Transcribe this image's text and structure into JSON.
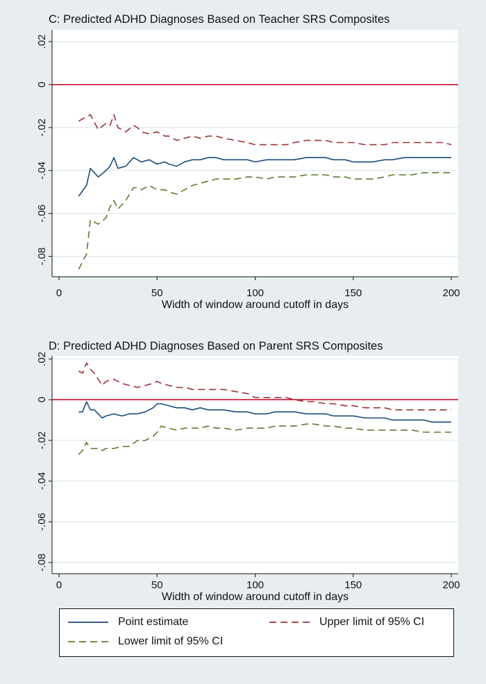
{
  "chart_data": [
    {
      "type": "line",
      "title": "C: Predicted ADHD Diagnoses Based on Teacher SRS Composites",
      "xlabel": "Width of window around cutoff in days",
      "ylabel": "",
      "xlim": [
        0,
        200
      ],
      "ylim": [
        -0.09,
        0.02
      ],
      "xticks": [
        0,
        50,
        100,
        150,
        200
      ],
      "yticks": [
        0.02,
        0,
        -0.02,
        -0.04,
        -0.06,
        -0.08
      ],
      "ytick_labels": [
        ".02",
        "0",
        "-.02",
        "-.04",
        "-.06",
        "-.08"
      ],
      "reference_line": 0,
      "grid": true,
      "x": [
        10,
        14,
        16,
        20,
        24,
        26,
        28,
        30,
        34,
        38,
        40,
        42,
        46,
        50,
        54,
        56,
        60,
        64,
        68,
        72,
        76,
        80,
        84,
        90,
        96,
        100,
        106,
        110,
        116,
        120,
        126,
        130,
        136,
        140,
        146,
        150,
        156,
        160,
        166,
        170,
        176,
        180,
        186,
        190,
        196,
        200
      ],
      "series": [
        {
          "name": "Point estimate",
          "values": [
            -0.052,
            -0.047,
            -0.039,
            -0.043,
            -0.04,
            -0.038,
            -0.034,
            -0.039,
            -0.038,
            -0.034,
            -0.035,
            -0.036,
            -0.035,
            -0.037,
            -0.036,
            -0.037,
            -0.038,
            -0.036,
            -0.035,
            -0.035,
            -0.034,
            -0.034,
            -0.035,
            -0.035,
            -0.035,
            -0.036,
            -0.035,
            -0.035,
            -0.035,
            -0.035,
            -0.034,
            -0.034,
            -0.034,
            -0.035,
            -0.035,
            -0.036,
            -0.036,
            -0.036,
            -0.035,
            -0.035,
            -0.034,
            -0.034,
            -0.034,
            -0.034,
            -0.034,
            -0.034
          ]
        },
        {
          "name": "Upper limit of 95% CI",
          "values": [
            -0.017,
            -0.015,
            -0.014,
            -0.021,
            -0.018,
            -0.019,
            -0.014,
            -0.02,
            -0.022,
            -0.019,
            -0.02,
            -0.022,
            -0.023,
            -0.022,
            -0.024,
            -0.024,
            -0.026,
            -0.025,
            -0.024,
            -0.025,
            -0.024,
            -0.024,
            -0.025,
            -0.026,
            -0.027,
            -0.028,
            -0.028,
            -0.028,
            -0.028,
            -0.027,
            -0.026,
            -0.026,
            -0.026,
            -0.027,
            -0.027,
            -0.027,
            -0.028,
            -0.028,
            -0.028,
            -0.027,
            -0.027,
            -0.027,
            -0.027,
            -0.027,
            -0.027,
            -0.028
          ]
        },
        {
          "name": "Lower limit of 95% CI",
          "values": [
            -0.086,
            -0.079,
            -0.063,
            -0.065,
            -0.062,
            -0.057,
            -0.054,
            -0.058,
            -0.054,
            -0.048,
            -0.048,
            -0.049,
            -0.047,
            -0.049,
            -0.049,
            -0.05,
            -0.051,
            -0.049,
            -0.047,
            -0.046,
            -0.045,
            -0.044,
            -0.044,
            -0.044,
            -0.043,
            -0.043,
            -0.044,
            -0.043,
            -0.043,
            -0.043,
            -0.042,
            -0.042,
            -0.042,
            -0.043,
            -0.043,
            -0.044,
            -0.044,
            -0.044,
            -0.043,
            -0.042,
            -0.042,
            -0.042,
            -0.041,
            -0.041,
            -0.041,
            -0.041
          ]
        }
      ]
    },
    {
      "type": "line",
      "title": "D: Predicted ADHD Diagnoses Based on Parent SRS Composites",
      "xlabel": "Width of window around cutoff in days",
      "ylabel": "",
      "xlim": [
        0,
        200
      ],
      "ylim": [
        -0.085,
        0.022
      ],
      "xticks": [
        0,
        50,
        100,
        150,
        200
      ],
      "yticks": [
        0.02,
        0,
        -0.02,
        -0.04,
        -0.06,
        -0.08
      ],
      "ytick_labels": [
        ".02",
        "0",
        "-.02",
        "-.04",
        "-.06",
        "-.08"
      ],
      "reference_line": 0,
      "grid": true,
      "x": [
        10,
        12,
        14,
        16,
        18,
        20,
        22,
        24,
        28,
        32,
        36,
        40,
        44,
        48,
        50,
        52,
        56,
        60,
        64,
        68,
        72,
        76,
        80,
        84,
        90,
        96,
        100,
        106,
        110,
        116,
        120,
        126,
        130,
        136,
        140,
        146,
        150,
        156,
        160,
        166,
        170,
        176,
        180,
        186,
        190,
        196,
        200
      ],
      "series": [
        {
          "name": "Point estimate",
          "values": [
            -0.006,
            -0.006,
            -0.001,
            -0.005,
            -0.005,
            -0.007,
            -0.009,
            -0.008,
            -0.007,
            -0.008,
            -0.007,
            -0.007,
            -0.006,
            -0.004,
            -0.002,
            -0.002,
            -0.003,
            -0.004,
            -0.004,
            -0.005,
            -0.004,
            -0.005,
            -0.005,
            -0.005,
            -0.006,
            -0.006,
            -0.007,
            -0.007,
            -0.006,
            -0.006,
            -0.006,
            -0.007,
            -0.007,
            -0.007,
            -0.008,
            -0.008,
            -0.008,
            -0.009,
            -0.009,
            -0.009,
            -0.01,
            -0.01,
            -0.01,
            -0.01,
            -0.011,
            -0.011,
            -0.011
          ]
        },
        {
          "name": "Upper limit of 95% CI",
          "values": [
            0.014,
            0.013,
            0.018,
            0.015,
            0.013,
            0.01,
            0.007,
            0.009,
            0.01,
            0.008,
            0.007,
            0.006,
            0.007,
            0.008,
            0.009,
            0.008,
            0.007,
            0.006,
            0.006,
            0.005,
            0.005,
            0.005,
            0.005,
            0.005,
            0.004,
            0.003,
            0.001,
            0.001,
            0.001,
            0.001,
            0.0,
            -0.001,
            -0.001,
            -0.002,
            -0.002,
            -0.003,
            -0.003,
            -0.004,
            -0.004,
            -0.004,
            -0.005,
            -0.005,
            -0.005,
            -0.005,
            -0.005,
            -0.005,
            -0.005
          ]
        },
        {
          "name": "Lower limit of 95% CI",
          "values": [
            -0.027,
            -0.025,
            -0.021,
            -0.024,
            -0.024,
            -0.024,
            -0.025,
            -0.024,
            -0.024,
            -0.023,
            -0.023,
            -0.02,
            -0.02,
            -0.018,
            -0.016,
            -0.013,
            -0.014,
            -0.015,
            -0.014,
            -0.014,
            -0.014,
            -0.013,
            -0.014,
            -0.014,
            -0.015,
            -0.014,
            -0.014,
            -0.014,
            -0.013,
            -0.013,
            -0.013,
            -0.012,
            -0.012,
            -0.013,
            -0.013,
            -0.014,
            -0.014,
            -0.015,
            -0.015,
            -0.015,
            -0.015,
            -0.015,
            -0.015,
            -0.016,
            -0.016,
            -0.016,
            -0.016
          ]
        }
      ]
    }
  ],
  "colors": {
    "point": "#1a4a78",
    "upper": "#9b3036",
    "lower": "#5a7a2e",
    "zero": "#c0001a",
    "grid": "#e0e9ec",
    "panel": "#ffffff"
  },
  "legend": {
    "point": "Point estimate",
    "upper": "Upper limit of 95% CI",
    "lower": "Lower limit of 95% CI"
  }
}
